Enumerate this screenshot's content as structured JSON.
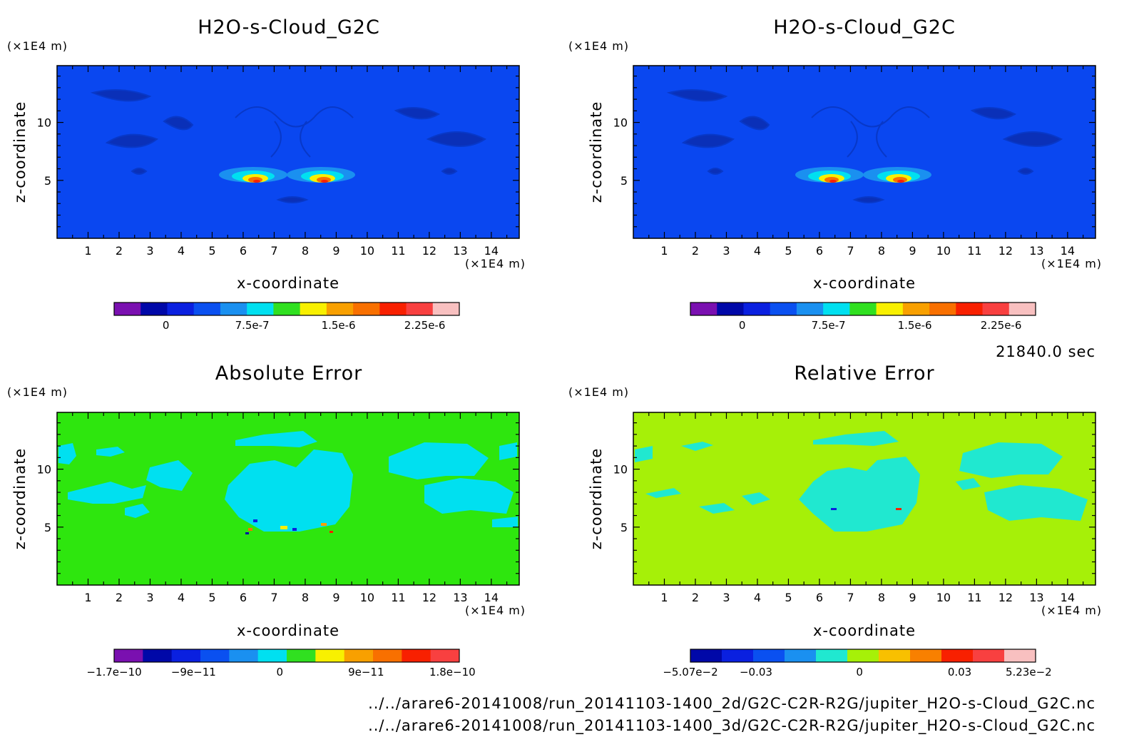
{
  "chart_data": [
    {
      "type": "heatmap",
      "title": "H2O-s-Cloud_G2C",
      "xlabel": "x-coordinate",
      "ylabel": "z-coordinate",
      "x_unit": "(×1E4 m)",
      "y_unit": "(×1E4 m)",
      "x_ticks": [
        "1",
        "2",
        "3",
        "4",
        "5",
        "6",
        "7",
        "8",
        "9",
        "10",
        "11",
        "12",
        "13",
        "14"
      ],
      "y_ticks": [
        "5",
        "10"
      ],
      "xlim": [
        0,
        14.9
      ],
      "ylim": [
        0,
        14.9
      ],
      "background_color": "#0a47f0",
      "colorbar": {
        "labels": [
          "0",
          "7.5e-7",
          "1.5e-6",
          "2.25e-6"
        ],
        "colors": [
          "#7a10b0",
          "#0008a8",
          "#0a20e0",
          "#0a50f0",
          "#1a90f0",
          "#00e0f0",
          "#30e020",
          "#f8f000",
          "#f8a000",
          "#f87000",
          "#f82000",
          "#f84040",
          "#f8c0c0"
        ]
      }
    },
    {
      "type": "heatmap",
      "title": "H2O-s-Cloud_G2C",
      "xlabel": "x-coordinate",
      "ylabel": "z-coordinate",
      "x_unit": "(×1E4 m)",
      "y_unit": "(×1E4 m)",
      "x_ticks": [
        "1",
        "2",
        "3",
        "4",
        "5",
        "6",
        "7",
        "8",
        "9",
        "10",
        "11",
        "12",
        "13",
        "14"
      ],
      "y_ticks": [
        "5",
        "10"
      ],
      "xlim": [
        0,
        14.9
      ],
      "ylim": [
        0,
        14.9
      ],
      "background_color": "#0a47f0",
      "colorbar": {
        "labels": [
          "0",
          "7.5e-7",
          "1.5e-6",
          "2.25e-6"
        ],
        "colors": [
          "#7a10b0",
          "#0008a8",
          "#0a20e0",
          "#0a50f0",
          "#1a90f0",
          "#00e0f0",
          "#30e020",
          "#f8f000",
          "#f8a000",
          "#f87000",
          "#f82000",
          "#f84040",
          "#f8c0c0"
        ]
      }
    },
    {
      "type": "heatmap",
      "title": "Absolute Error",
      "xlabel": "x-coordinate",
      "ylabel": "z-coordinate",
      "x_unit": "(×1E4 m)",
      "y_unit": "(×1E4 m)",
      "x_ticks": [
        "1",
        "2",
        "3",
        "4",
        "5",
        "6",
        "7",
        "8",
        "9",
        "10",
        "11",
        "12",
        "13",
        "14"
      ],
      "y_ticks": [
        "5",
        "10"
      ],
      "xlim": [
        0,
        14.9
      ],
      "ylim": [
        0,
        14.9
      ],
      "background_color": "#2ee60e",
      "colorbar": {
        "labels": [
          "−1.7e−10",
          "−9e−11",
          "0",
          "9e−11",
          "1.8e−10"
        ],
        "colors": [
          "#7a10b0",
          "#0008a8",
          "#0a20e0",
          "#0a50f0",
          "#1a90f0",
          "#00e0f0",
          "#30e020",
          "#f8f000",
          "#f8a000",
          "#f87000",
          "#f82000",
          "#f84040"
        ]
      }
    },
    {
      "type": "heatmap",
      "title": "Relative Error",
      "xlabel": "x-coordinate",
      "ylabel": "z-coordinate",
      "x_unit": "(×1E4 m)",
      "y_unit": "(×1E4 m)",
      "x_ticks": [
        "1",
        "2",
        "3",
        "4",
        "5",
        "6",
        "7",
        "8",
        "9",
        "10",
        "11",
        "12",
        "13",
        "14"
      ],
      "y_ticks": [
        "5",
        "10"
      ],
      "xlim": [
        0,
        14.9
      ],
      "ylim": [
        0,
        14.9
      ],
      "background_color": "#a6f008",
      "colorbar": {
        "labels": [
          "−5.07e−2",
          "−0.03",
          "0",
          "0.03",
          "5.23e−2"
        ],
        "colors": [
          "#0008a8",
          "#0a20e0",
          "#0a50f0",
          "#1a90f0",
          "#20e8d0",
          "#a6f008",
          "#f8c000",
          "#f88000",
          "#f82000",
          "#f84040",
          "#f8c0c0"
        ]
      }
    }
  ],
  "time_label": "21840.0 sec",
  "file_paths": [
    "../../arare6-20141008/run_20141103-1400_2d/G2C-C2R-R2G/jupiter_H2O-s-Cloud_G2C.nc",
    "../../arare6-20141008/run_20141103-1400_3d/G2C-C2R-R2G/jupiter_H2O-s-Cloud_G2C.nc"
  ]
}
